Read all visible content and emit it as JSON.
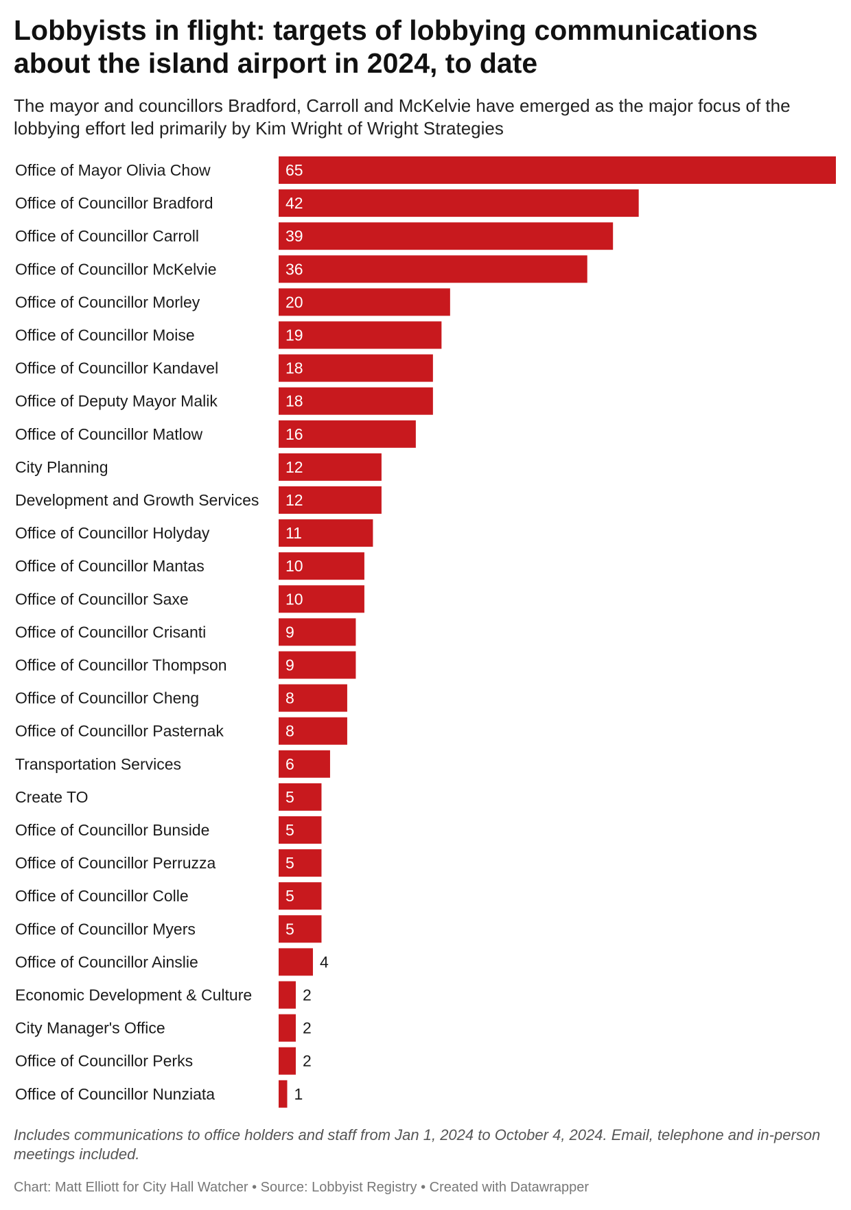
{
  "header": {
    "title": "Lobbyists in flight: targets of lobbying communications about the island airport in 2024, to date",
    "subtitle": "The mayor and councillors Bradford, Carroll and McKelvie have emerged as the major focus of the lobbying effort led primarily by Kim Wright of Wright Strategies"
  },
  "colors": {
    "bar": "#c8191e",
    "label_inside": "#ffffff",
    "label_outside": "#1a1a1a"
  },
  "chart_data": {
    "type": "bar",
    "orientation": "horizontal",
    "categories": [
      "Office of Mayor Olivia Chow",
      "Office of Councillor Bradford",
      "Office of Councillor Carroll",
      "Office of Councillor McKelvie",
      "Office of Councillor Morley",
      "Office of Councillor Moise",
      "Office of Councillor Kandavel",
      "Office of Deputy Mayor Malik",
      "Office of Councillor Matlow",
      "City Planning",
      "Development and Growth Services",
      "Office of Councillor Holyday",
      "Office of Councillor Mantas",
      "Office of Councillor Saxe",
      "Office of Councillor Crisanti",
      "Office of Councillor Thompson",
      "Office of Councillor Cheng",
      "Office of Councillor Pasternak",
      "Transportation Services",
      "Create TO",
      "Office of Councillor Bunside",
      "Office of Councillor Perruzza",
      "Office of Councillor Colle",
      "Office of Councillor Myers",
      "Office of Councillor Ainslie",
      "Economic Development & Culture",
      "City Manager's Office",
      "Office of Councillor Perks",
      "Office of Councillor Nunziata"
    ],
    "values": [
      65,
      42,
      39,
      36,
      20,
      19,
      18,
      18,
      16,
      12,
      12,
      11,
      10,
      10,
      9,
      9,
      8,
      8,
      6,
      5,
      5,
      5,
      5,
      5,
      4,
      2,
      2,
      2,
      1
    ],
    "xlim": [
      0,
      65
    ],
    "grid": false,
    "legend": "none",
    "value_labels": true
  },
  "footer": {
    "notes": "Includes communications to office holders and staff from Jan 1, 2024 to October 4, 2024. Email, telephone and in-person meetings included.",
    "credit": "Chart: Matt Elliott for City Hall Watcher • Source: Lobbyist Registry • Created with Datawrapper"
  }
}
